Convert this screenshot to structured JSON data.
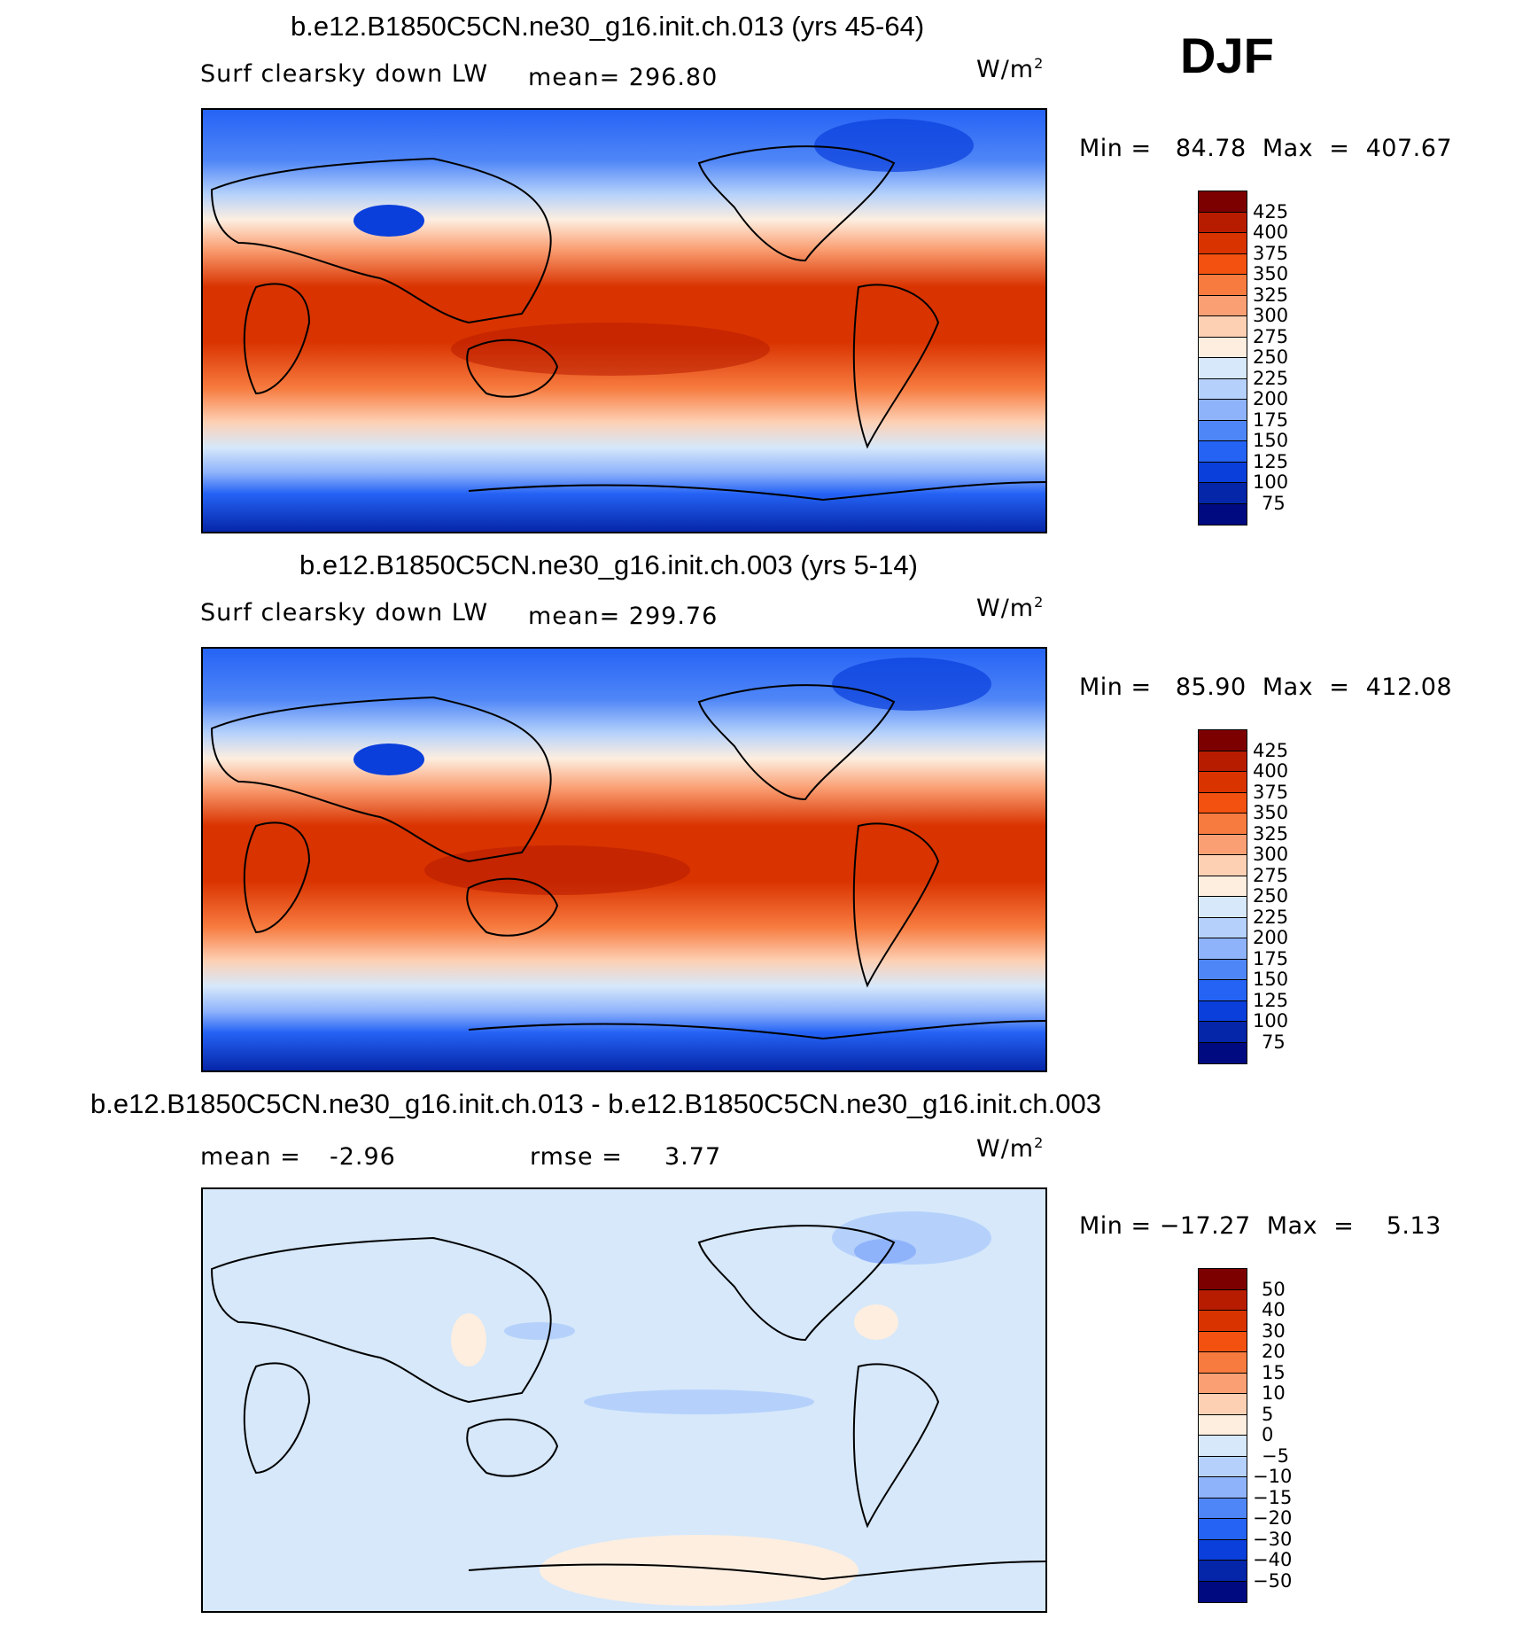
{
  "season": "DJF",
  "panels": [
    {
      "title": "b.e12.B1850C5CN.ne30_g16.init.ch.013 (yrs 45-64)",
      "variable": "Surf clearsky down LW",
      "stat_label": "mean=",
      "stat_value": "296.80",
      "units": "W/m",
      "units_sup": "2",
      "minmax": "Min =   84.78  Max  =  407.67",
      "colorbar": {
        "labels": [
          "425",
          "400",
          "375",
          "350",
          "325",
          "300",
          "275",
          "250",
          "225",
          "200",
          "175",
          "150",
          "125",
          "100",
          "75"
        ],
        "colors": [
          "#7d0000",
          "#b81c00",
          "#d93300",
          "#f2510f",
          "#f77b3f",
          "#fa9f73",
          "#fdd0b4",
          "#fdeee0",
          "#d6e8fa",
          "#b5d1fb",
          "#8fb3fb",
          "#4f86f7",
          "#2563f5",
          "#0a3fdc",
          "#0526a8",
          "#000a80"
        ]
      },
      "field": "absolute"
    },
    {
      "title": "b.e12.B1850C5CN.ne30_g16.init.ch.003 (yrs 5-14)",
      "variable": "Surf clearsky down LW",
      "stat_label": "mean=",
      "stat_value": "299.76",
      "units": "W/m",
      "units_sup": "2",
      "minmax": "Min =   85.90  Max  =  412.08",
      "colorbar": {
        "labels": [
          "425",
          "400",
          "375",
          "350",
          "325",
          "300",
          "275",
          "250",
          "225",
          "200",
          "175",
          "150",
          "125",
          "100",
          "75"
        ],
        "colors": [
          "#7d0000",
          "#b81c00",
          "#d93300",
          "#f2510f",
          "#f77b3f",
          "#fa9f73",
          "#fdd0b4",
          "#fdeee0",
          "#d6e8fa",
          "#b5d1fb",
          "#8fb3fb",
          "#4f86f7",
          "#2563f5",
          "#0a3fdc",
          "#0526a8",
          "#000a80"
        ]
      },
      "field": "absolute"
    },
    {
      "title": "b.e12.B1850C5CN.ne30_g16.init.ch.013 - b.e12.B1850C5CN.ne30_g16.init.ch.003",
      "variable": "mean =",
      "stat_label": "-2.96",
      "stat_value": "rmse =",
      "rmse_value": "3.77",
      "units": "W/m",
      "units_sup": "2",
      "minmax": "Min = −17.27  Max  =    5.13",
      "colorbar": {
        "labels": [
          "50",
          "40",
          "30",
          "20",
          "15",
          "10",
          "5",
          "0",
          "−5",
          "−10",
          "−15",
          "−20",
          "−30",
          "−40",
          "−50"
        ],
        "colors": [
          "#7d0000",
          "#b81c00",
          "#d93300",
          "#f2510f",
          "#f77b3f",
          "#fa9f73",
          "#fdd0b4",
          "#fdeee0",
          "#d6e8fa",
          "#b5d1fb",
          "#8fb3fb",
          "#4f86f7",
          "#2563f5",
          "#0a3fdc",
          "#0526a8",
          "#000a80"
        ]
      },
      "field": "difference"
    }
  ]
}
